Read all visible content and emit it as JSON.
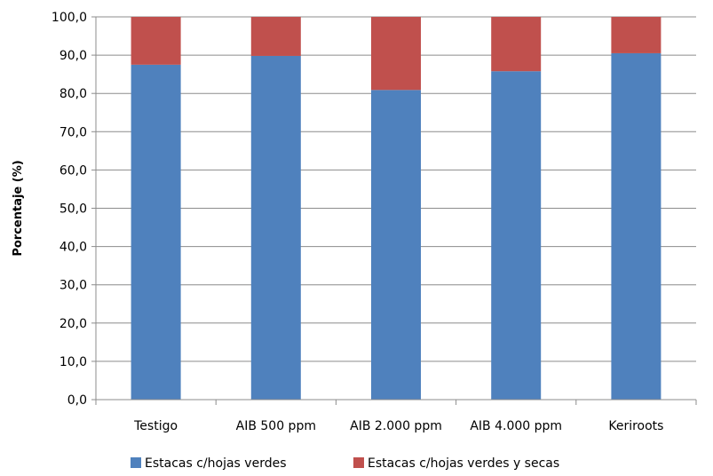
{
  "chart_data": {
    "type": "bar",
    "stacked": true,
    "categories": [
      "Testigo",
      "AIB 500 ppm",
      "AIB 2.000 ppm",
      "AIB 4.000 ppm",
      "Keriroots"
    ],
    "series": [
      {
        "name": "Estacas c/hojas verdes",
        "color": "#4f81bd",
        "values": [
          87.5,
          89.8,
          80.9,
          85.8,
          90.5
        ]
      },
      {
        "name": "Estacas c/hojas verdes y secas",
        "color": "#c0504d",
        "values": [
          12.5,
          10.2,
          19.1,
          14.2,
          9.5
        ]
      }
    ],
    "title": "",
    "xlabel": "",
    "ylabel": "Porcentaje (%)",
    "ylim": [
      0,
      100
    ],
    "yticks": [
      "0,0",
      "10,0",
      "20,0",
      "30,0",
      "40,0",
      "50,0",
      "60,0",
      "70,0",
      "80,0",
      "90,0",
      "100,0"
    ],
    "grid": true,
    "legend_position": "bottom"
  }
}
